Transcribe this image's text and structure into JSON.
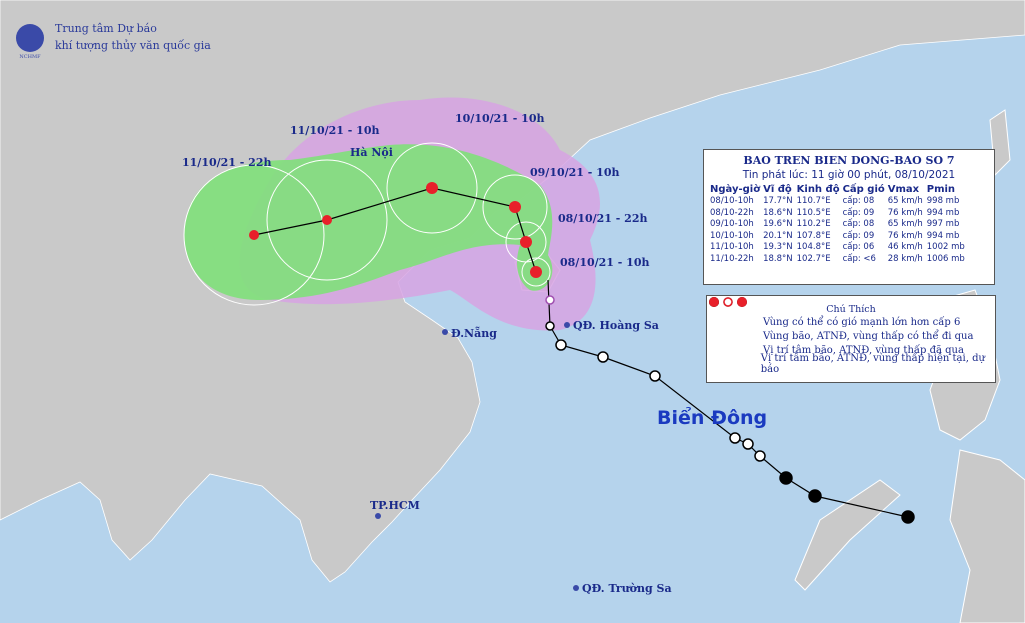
{
  "header": {
    "org_line1": "Trung tâm Dự báo",
    "org_line2": "khí tượng thủy văn quốc gia",
    "logo_text": "NCHMF"
  },
  "info": {
    "title": "BAO TREN BIEN DONG-BAO SO 7",
    "issued": "Tin phát lúc: 11 giờ 00 phút, 08/10/2021",
    "columns": [
      "Ngày-giờ",
      "Vĩ độ",
      "Kinh độ",
      "Cấp gió",
      "Vmax",
      "Pmin"
    ],
    "rows": [
      [
        "08/10-10h",
        "17.7°N",
        "110.7°E",
        "cấp: 08",
        "65 km/h",
        "998 mb"
      ],
      [
        "08/10-22h",
        "18.6°N",
        "110.5°E",
        "cấp: 09",
        "76 km/h",
        "994 mb"
      ],
      [
        "09/10-10h",
        "19.6°N",
        "110.2°E",
        "cấp: 08",
        "65 km/h",
        "997 mb"
      ],
      [
        "10/10-10h",
        "20.1°N",
        "107.8°E",
        "cấp: 09",
        "76 km/h",
        "994 mb"
      ],
      [
        "11/10-10h",
        "19.3°N",
        "104.8°E",
        "cấp: 06",
        "46 km/h",
        "1002 mb"
      ],
      [
        "11/10-22h",
        "18.8°N",
        "102.7°E",
        "cấp: <6",
        "28 km/h",
        "1006 mb"
      ]
    ]
  },
  "legend": {
    "title": "Chú Thích",
    "items": [
      "Vùng có thể có gió mạnh lớn hơn cấp 6",
      "Vùng bão, ATNĐ, vùng thấp có thể đi qua",
      "Vị trí tâm bão, ATNĐ, vùng thấp đã qua",
      "Vị trí tâm bão, ATNĐ, vùng thấp hiện tại, dự báo"
    ]
  },
  "time_labels": [
    "10/10/21 - 10h",
    "11/10/21 - 10h",
    "11/10/21 - 22h",
    "09/10/21 - 10h",
    "08/10/21 - 22h",
    "08/10/21 - 10h"
  ],
  "places": [
    "Hà Nội",
    "Đ.Nẵng",
    "QĐ. Hoàng Sa",
    "TP.HCM",
    "QĐ. Trường Sa"
  ],
  "sea_label": "Biển Đông"
}
